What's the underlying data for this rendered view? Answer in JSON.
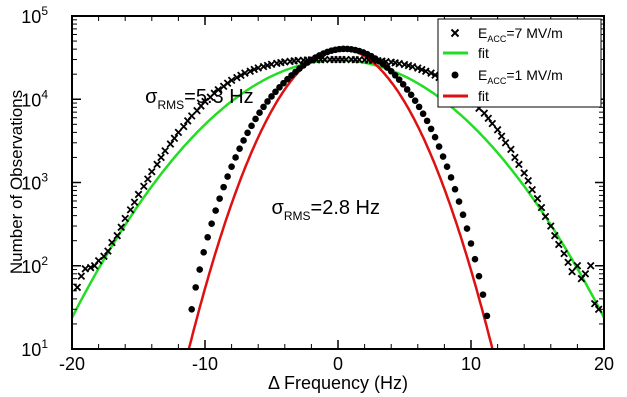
{
  "chart_data": {
    "type": "scatter",
    "xlabel": "Δ Frequency (Hz)",
    "ylabel": "Number of Observations",
    "xlim": [
      -20,
      20
    ],
    "ylim": [
      10,
      100000
    ],
    "yscale": "log",
    "x_ticks": [
      -20,
      -10,
      0,
      10,
      20
    ],
    "y_ticks": [
      {
        "value": 10,
        "base": "10",
        "exp": "1"
      },
      {
        "value": 100,
        "base": "10",
        "exp": "2"
      },
      {
        "value": 1000,
        "base": "10",
        "exp": "3"
      },
      {
        "value": 10000,
        "base": "10",
        "exp": "4"
      },
      {
        "value": 100000,
        "base": "10",
        "exp": "5"
      }
    ],
    "grid": false,
    "legend_position": "top-right",
    "legend": [
      {
        "marker": "x",
        "color": "#000000",
        "text": "E",
        "sub": "ACC",
        "rest": "=7 MV/m"
      },
      {
        "marker": "line",
        "color": "#22dd22",
        "text": "fit",
        "sub": "",
        "rest": ""
      },
      {
        "marker": "dot",
        "color": "#000000",
        "text": "E",
        "sub": "ACC",
        "rest": "=1 MV/m"
      },
      {
        "marker": "line",
        "color": "#dd1111",
        "text": "fit",
        "sub": "",
        "rest": ""
      }
    ],
    "annotations": [
      {
        "text": "σ",
        "sub": "RMS",
        "rest": "=5.3 Hz",
        "x": -14.5,
        "y": 9000
      },
      {
        "text": "σ",
        "sub": "RMS",
        "rest": "=2.8 Hz",
        "x": -5.0,
        "y": 420
      }
    ],
    "series": [
      {
        "label": "E_ACC=7 MV/m",
        "marker": "x",
        "color": "#000000",
        "x": [
          -19.6,
          -19.3,
          -19.0,
          -18.6,
          -18.3,
          -18.0,
          -17.6,
          -17.3,
          -17.0,
          -16.6,
          -16.3,
          -16.0,
          -15.6,
          -15.3,
          -15.0,
          -14.6,
          -14.3,
          -14.0,
          -13.6,
          -13.3,
          -13.0,
          -12.6,
          -12.3,
          -12.0,
          -11.6,
          -11.3,
          -11.0,
          -10.6,
          -10.3,
          -10.0,
          -9.6,
          -9.3,
          -9.0,
          -8.6,
          -8.3,
          -8.0,
          -7.6,
          -7.3,
          -7.0,
          -6.6,
          -6.3,
          -6.0,
          -5.6,
          -5.3,
          -5.0,
          -4.6,
          -4.3,
          -4.0,
          -3.6,
          -3.3,
          -3.0,
          -2.6,
          -2.3,
          -2.0,
          -1.6,
          -1.3,
          -1.0,
          -0.6,
          -0.3,
          0.0,
          0.3,
          0.6,
          1.0,
          1.3,
          1.6,
          2.0,
          2.3,
          2.6,
          3.0,
          3.3,
          3.6,
          4.0,
          4.3,
          4.6,
          5.0,
          5.3,
          5.6,
          6.0,
          6.3,
          6.6,
          7.0,
          7.3,
          7.6,
          8.0,
          8.3,
          8.6,
          9.0,
          9.3,
          9.6,
          10.0,
          10.3,
          10.6,
          11.0,
          11.3,
          11.6,
          12.0,
          12.3,
          12.6,
          13.0,
          13.3,
          13.6,
          14.0,
          14.3,
          14.6,
          15.0,
          15.3,
          15.6,
          16.0,
          16.3,
          16.6,
          17.0,
          17.3,
          17.6,
          18.0,
          18.3,
          18.6,
          19.0,
          19.3,
          19.6
        ],
        "y": [
          55,
          75,
          92,
          95,
          100,
          115,
          130,
          150,
          190,
          230,
          290,
          370,
          470,
          580,
          720,
          900,
          1100,
          1350,
          1650,
          2000,
          2400,
          2900,
          3400,
          4000,
          4700,
          5500,
          6300,
          7300,
          8300,
          9400,
          10600,
          11800,
          13000,
          14300,
          15600,
          16900,
          18200,
          19400,
          20600,
          21700,
          22800,
          23800,
          24700,
          25500,
          26300,
          27000,
          27600,
          28100,
          28500,
          28900,
          29200,
          29400,
          29600,
          29700,
          29800,
          29900,
          30000,
          30000,
          30000,
          30000,
          30000,
          30000,
          30000,
          29900,
          29800,
          29700,
          29500,
          29300,
          29000,
          28700,
          28300,
          27900,
          27400,
          26800,
          26100,
          25400,
          24600,
          23700,
          22700,
          21700,
          20600,
          19500,
          18300,
          17100,
          15900,
          14600,
          13400,
          12200,
          11000,
          9900,
          8800,
          7800,
          6800,
          5900,
          5100,
          4300,
          3600,
          3000,
          2500,
          2000,
          1650,
          1300,
          1050,
          820,
          640,
          500,
          390,
          300,
          230,
          180,
          140,
          110,
          85,
          100,
          70,
          80,
          100,
          35,
          30
        ]
      },
      {
        "label": "fit",
        "marker": "line",
        "color": "#22dd22",
        "mu": 0.0,
        "sigma": 5.3,
        "amplitude": 29500,
        "x_range": [
          -20,
          20
        ]
      },
      {
        "label": "E_ACC=1 MV/m",
        "marker": "dot",
        "color": "#000000",
        "x": [
          -11.0,
          -10.7,
          -10.4,
          -10.1,
          -9.8,
          -9.5,
          -9.2,
          -8.9,
          -8.6,
          -8.3,
          -8.0,
          -7.7,
          -7.4,
          -7.1,
          -6.8,
          -6.5,
          -6.2,
          -5.9,
          -5.6,
          -5.3,
          -5.0,
          -4.7,
          -4.4,
          -4.1,
          -3.8,
          -3.5,
          -3.2,
          -2.9,
          -2.6,
          -2.3,
          -2.0,
          -1.7,
          -1.4,
          -1.1,
          -0.8,
          -0.5,
          -0.2,
          0.1,
          0.4,
          0.7,
          1.0,
          1.3,
          1.6,
          1.9,
          2.2,
          2.5,
          2.8,
          3.1,
          3.4,
          3.7,
          4.0,
          4.3,
          4.6,
          4.9,
          5.2,
          5.5,
          5.8,
          6.1,
          6.4,
          6.7,
          7.0,
          7.3,
          7.6,
          7.9,
          8.2,
          8.5,
          8.8,
          9.1,
          9.4,
          9.7,
          10.0,
          10.3,
          10.6,
          10.9,
          11.2
        ],
        "y": [
          30,
          55,
          90,
          145,
          220,
          320,
          460,
          640,
          880,
          1180,
          1550,
          2000,
          2550,
          3200,
          3950,
          4800,
          5800,
          6900,
          8100,
          9400,
          10800,
          12300,
          13900,
          15600,
          17400,
          19300,
          21300,
          23400,
          25500,
          27600,
          29700,
          31700,
          33600,
          35400,
          37000,
          38300,
          39300,
          40000,
          40300,
          40200,
          39800,
          39000,
          37900,
          36500,
          34800,
          32900,
          30800,
          28600,
          26300,
          24000,
          21700,
          19400,
          17200,
          15100,
          13100,
          11300,
          9600,
          8100,
          6700,
          5500,
          4400,
          3500,
          2700,
          2050,
          1550,
          1150,
          830,
          590,
          410,
          280,
          185,
          120,
          75,
          45,
          25
        ]
      },
      {
        "label": "fit",
        "marker": "line",
        "color": "#dd1111",
        "mu": 0.2,
        "sigma": 2.8,
        "amplitude": 40500,
        "x_range": [
          -11.4,
          11.6
        ]
      }
    ]
  }
}
